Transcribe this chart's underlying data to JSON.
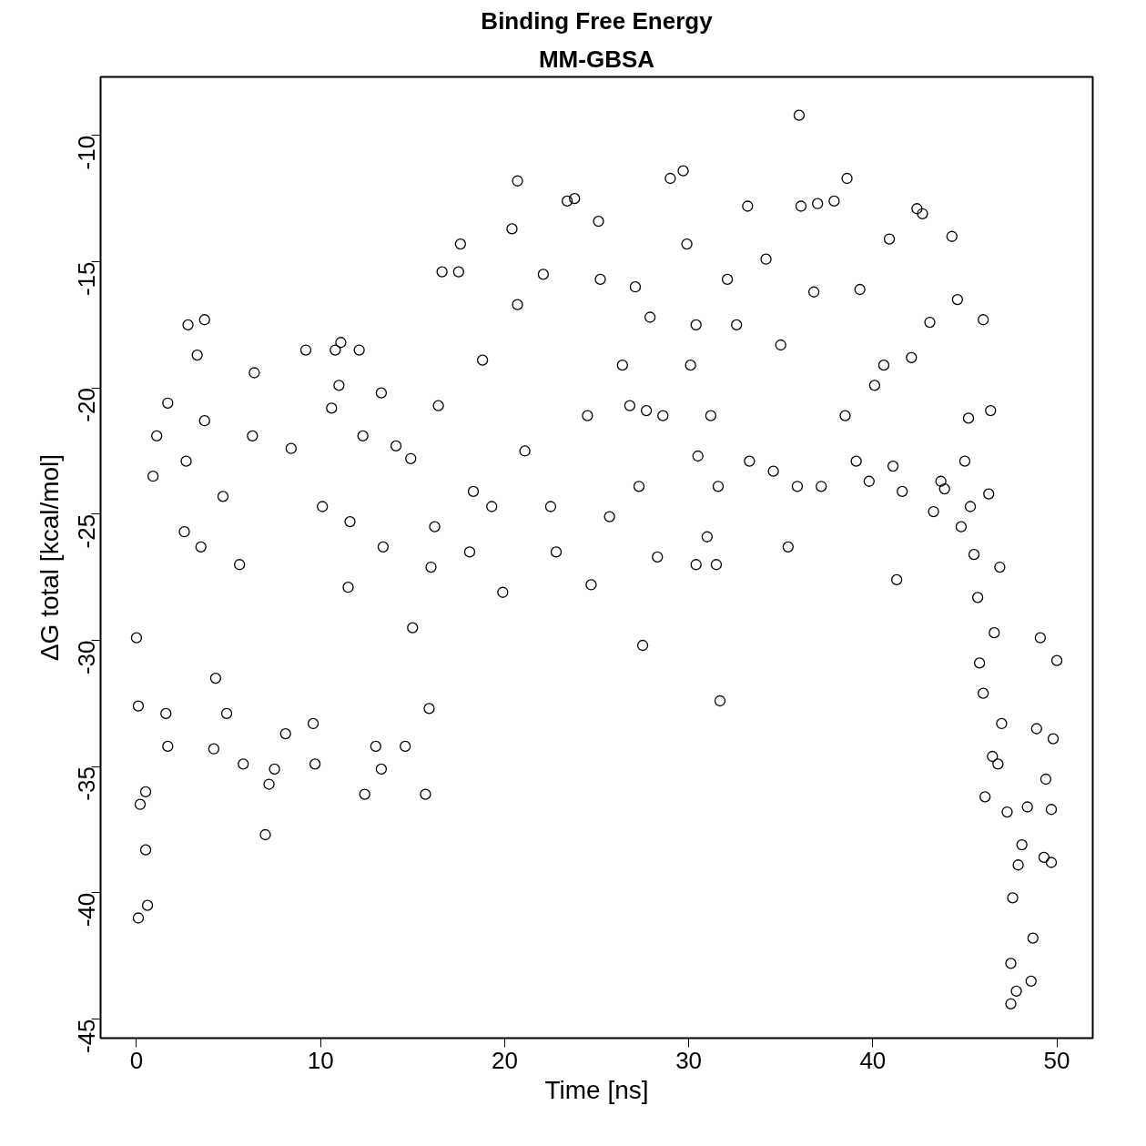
{
  "chart_data": {
    "type": "scatter",
    "title": "Binding Free Energy",
    "subtitle": "MM-GBSA",
    "xlabel": "Time [ns]",
    "ylabel": "ΔG total [kcal/mol]",
    "xlim": [
      -1.95,
      51.95
    ],
    "ylim": [
      -45.76,
      -7.68
    ],
    "xticks": [
      0,
      10,
      20,
      30,
      40,
      50
    ],
    "yticks": [
      -45,
      -40,
      -35,
      -30,
      -25,
      -20,
      -15,
      -10
    ],
    "marker": "circle",
    "series": [
      {
        "color": "#000000",
        "x": [
          0.1,
          0.6,
          0.1,
          0.2,
          0.5,
          0.5,
          0,
          0.9,
          1.1,
          1.6,
          1.7,
          1.7,
          2.8,
          3.7,
          3.3,
          3.7,
          2.7,
          2.6,
          3.5,
          4.2,
          4.3,
          4.7,
          4.9,
          5.6,
          5.8,
          6.4,
          7.0,
          7.2,
          6.3,
          7.5,
          8.1,
          8.4,
          9.2,
          9.7,
          9.6,
          10.1,
          10.6,
          10.8,
          11.1,
          11.0,
          11.6,
          11.5,
          12.1,
          12.3,
          12.4,
          13.0,
          13.3,
          13.3,
          14.1,
          14.6,
          14.9,
          13.4,
          15.0,
          15.7,
          15.9,
          16.0,
          16.2,
          16.4,
          16.6,
          17.5,
          17.6,
          18.1,
          18.3,
          18.8,
          19.3,
          19.9,
          20.4,
          20.7,
          20.7,
          21.1,
          22.1,
          22.5,
          22.8,
          23.4,
          23.8,
          24.7,
          24.5,
          25.1,
          25.2,
          25.7,
          26.4,
          26.8,
          27.1,
          27.3,
          27.5,
          27.7,
          27.9,
          28.3,
          28.6,
          29.0,
          29.7,
          29.9,
          30.1,
          30.4,
          30.4,
          30.5,
          31.0,
          31.2,
          31.5,
          31.6,
          31.7,
          32.1,
          32.6,
          33.2,
          33.3,
          34.2,
          34.6,
          35.0,
          35.4,
          36.0,
          36.1,
          35.9,
          36.8,
          37.0,
          37.2,
          37.9,
          38.6,
          38.5,
          39.1,
          39.3,
          39.8,
          40.1,
          40.6,
          40.9,
          41.1,
          41.3,
          41.6,
          42.1,
          42.4,
          42.7,
          43.1,
          43.3,
          43.7,
          43.9,
          44.3,
          44.6,
          44.8,
          45.0,
          45.2,
          45.3,
          45.5,
          45.7,
          45.8,
          46.0,
          46.0,
          46.1,
          46.3,
          46.6,
          46.4,
          46.5,
          46.8,
          46.9,
          47.0,
          47.3,
          47.5,
          47.6,
          47.8,
          47.5,
          47.9,
          48.1,
          48.4,
          48.6,
          48.7,
          48.9,
          49.1,
          49.3,
          49.4,
          49.7,
          49.7,
          49.8,
          50.0
        ],
        "values": [
          -41.0,
          -40.5,
          -32.6,
          -36.5,
          -36.0,
          -38.3,
          -29.9,
          -23.5,
          -21.9,
          -32.9,
          -34.2,
          -20.6,
          -17.5,
          -17.3,
          -18.7,
          -21.3,
          -22.9,
          -25.7,
          -26.3,
          -34.3,
          -31.5,
          -24.3,
          -32.9,
          -27.0,
          -34.9,
          -19.4,
          -37.7,
          -35.7,
          -21.9,
          -35.1,
          -33.7,
          -22.4,
          -18.5,
          -34.9,
          -33.3,
          -24.7,
          -20.8,
          -18.5,
          -18.2,
          -19.9,
          -25.3,
          -27.9,
          -18.5,
          -21.9,
          -36.1,
          -34.2,
          -35.1,
          -20.2,
          -22.3,
          -34.2,
          -22.8,
          -26.3,
          -29.5,
          -36.1,
          -32.7,
          -27.1,
          -25.5,
          -20.7,
          -15.4,
          -15.4,
          -14.3,
          -26.5,
          -24.1,
          -18.9,
          -24.7,
          -28.1,
          -13.7,
          -11.8,
          -16.7,
          -22.5,
          -15.5,
          -24.7,
          -26.5,
          -12.6,
          -12.5,
          -27.8,
          -21.1,
          -13.4,
          -15.7,
          -25.1,
          -19.1,
          -20.7,
          -16.0,
          -23.9,
          -30.2,
          -20.9,
          -17.2,
          -26.7,
          -21.1,
          -11.7,
          -11.4,
          -14.3,
          -19.1,
          -17.5,
          -27.0,
          -22.7,
          -25.9,
          -21.1,
          -27.0,
          -23.9,
          -32.4,
          -15.7,
          -17.5,
          -12.8,
          -22.9,
          -14.9,
          -23.3,
          -18.3,
          -26.3,
          -9.2,
          -12.8,
          -23.9,
          -16.2,
          -12.7,
          -23.9,
          -12.6,
          -11.7,
          -21.1,
          -22.9,
          -16.1,
          -23.7,
          -19.9,
          -19.1,
          -14.1,
          -23.1,
          -27.6,
          -24.1,
          -18.8,
          -12.9,
          -13.1,
          -17.4,
          -24.9,
          -23.7,
          -24.0,
          -14.0,
          -16.5,
          -25.5,
          -22.9,
          -21.2,
          -24.7,
          -26.6,
          -28.3,
          -30.9,
          -17.3,
          -32.1,
          -36.2,
          -24.2,
          -29.7,
          -20.9,
          -34.6,
          -34.9,
          -27.1,
          -33.3,
          -36.8,
          -44.4,
          -40.2,
          -43.9,
          -42.8,
          -38.9,
          -38.1,
          -36.6,
          -43.5,
          -41.8,
          -33.5,
          -29.9,
          -38.6,
          -35.5,
          -36.7,
          -38.8,
          -33.9,
          -30.8
        ]
      }
    ]
  }
}
